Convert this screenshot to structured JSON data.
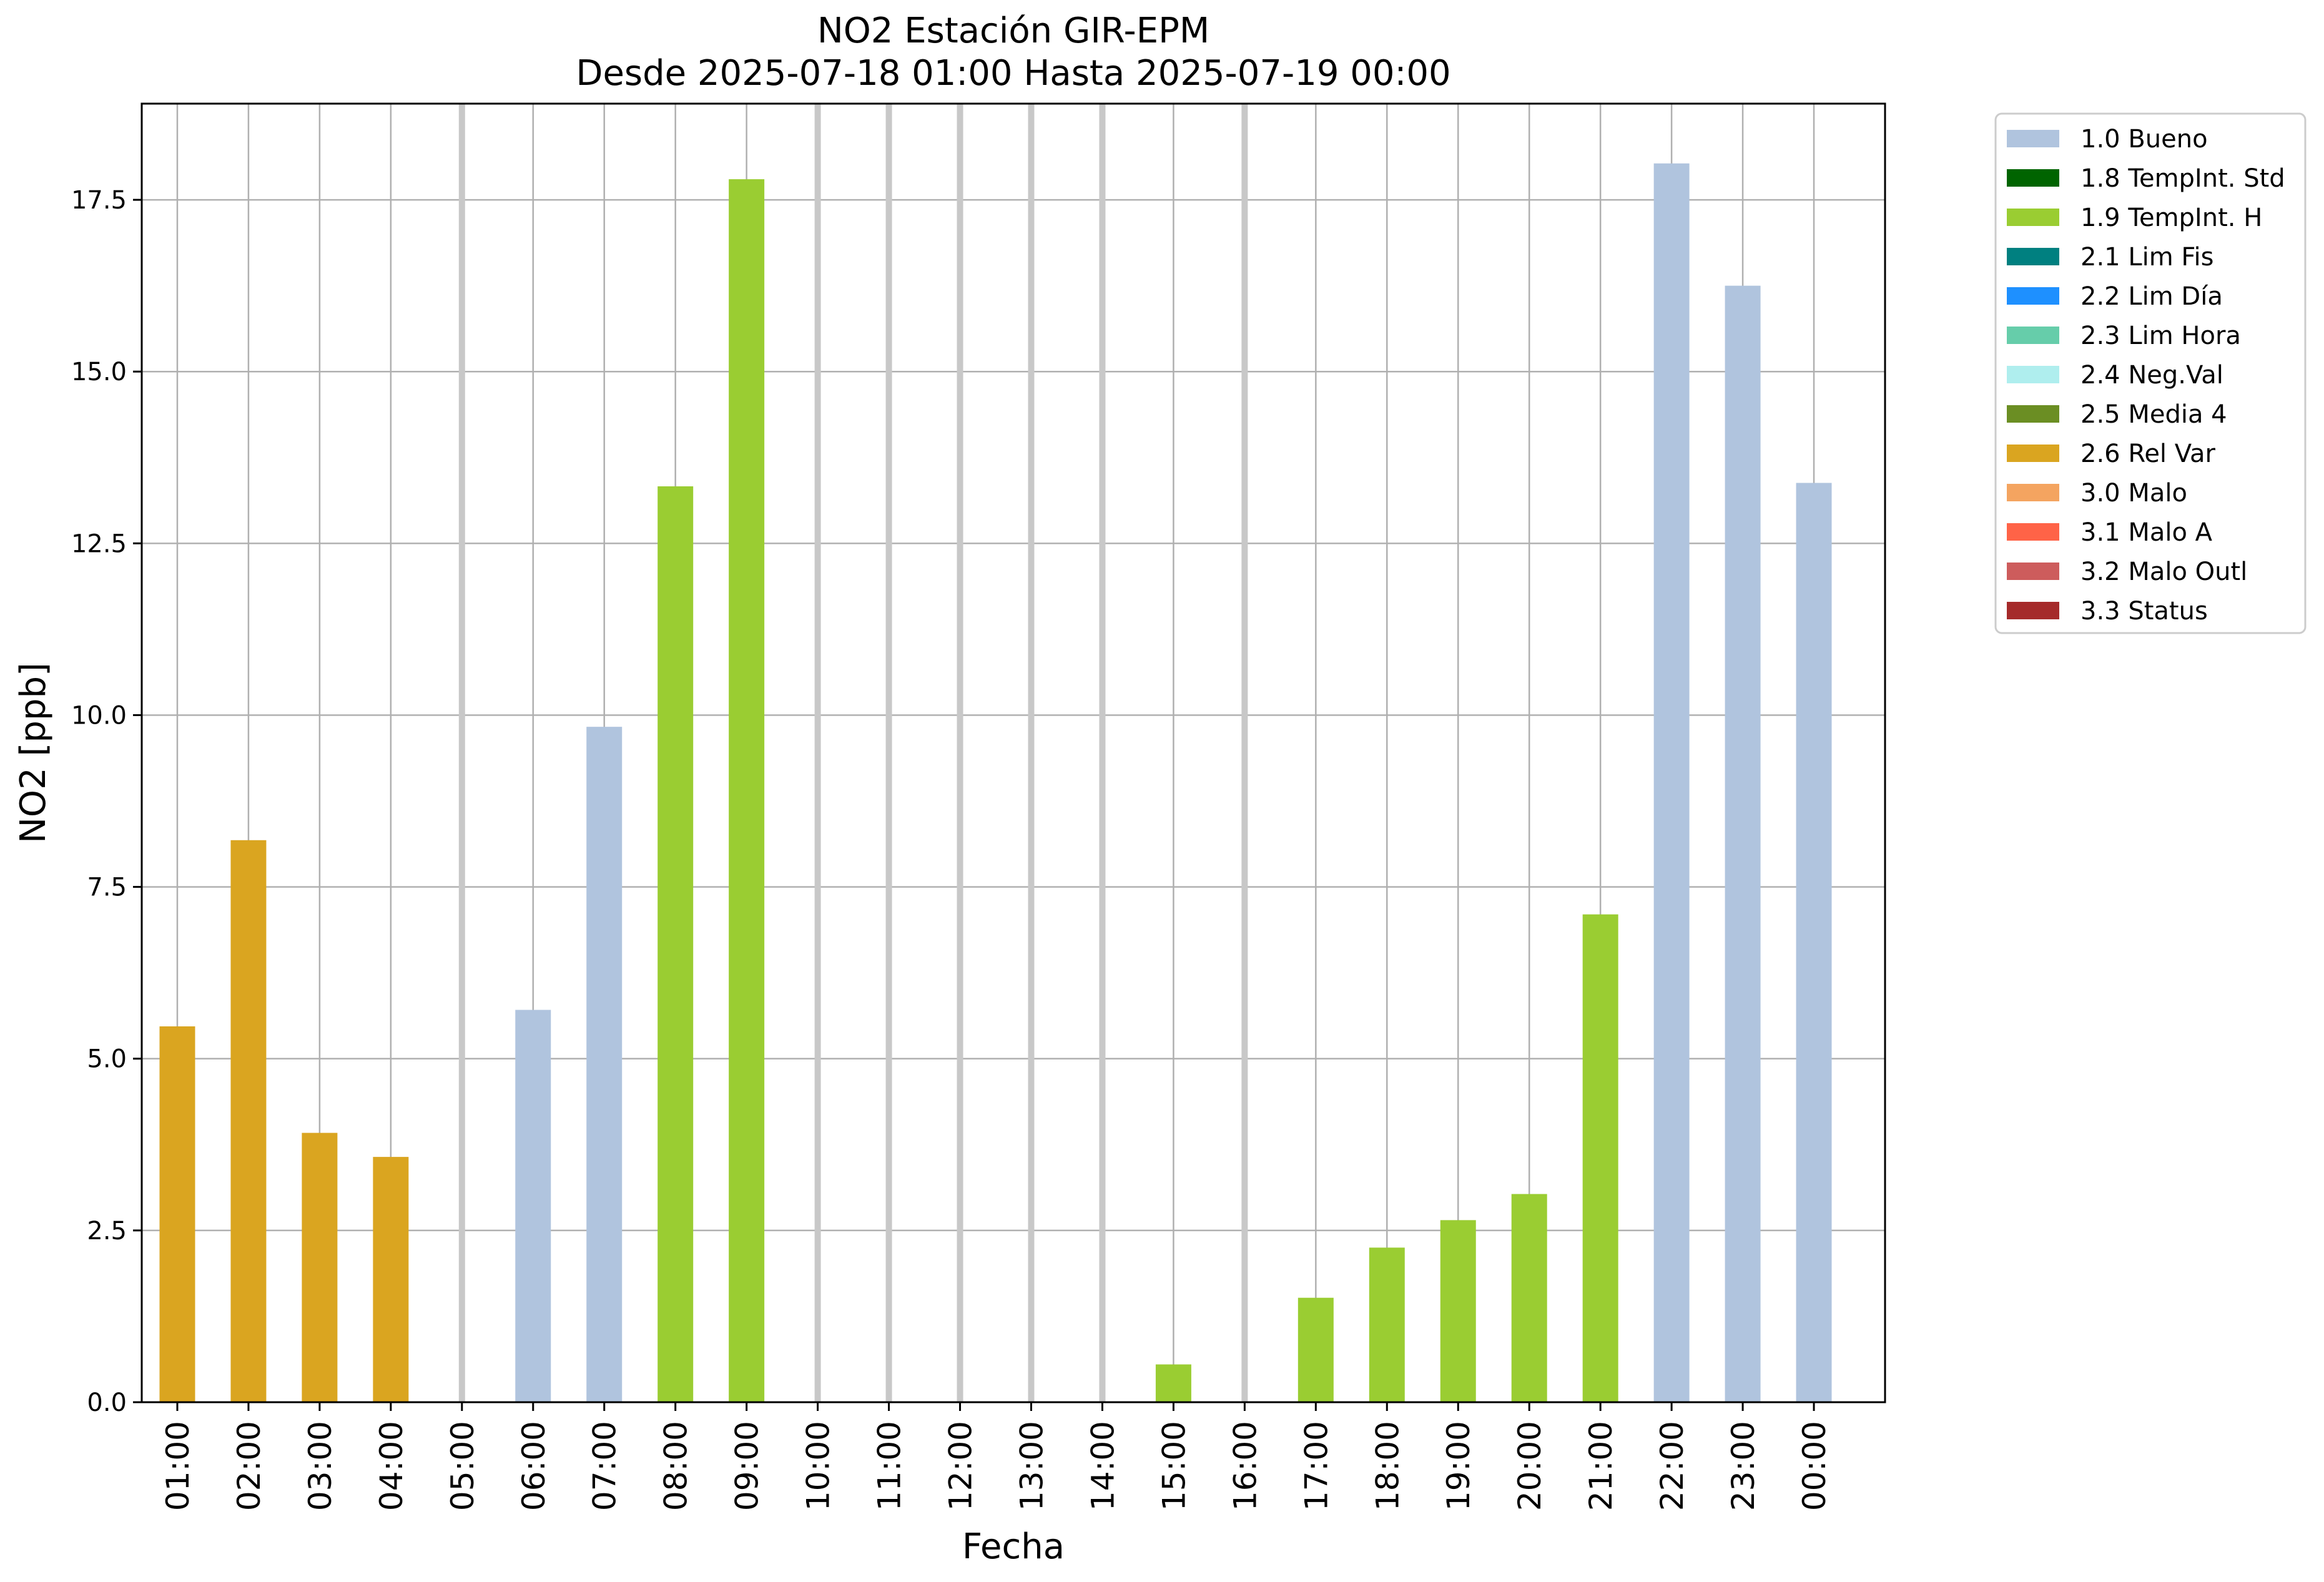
{
  "chart_data": {
    "type": "bar",
    "title": "NO2 Estación GIR-EPM",
    "subtitle": "Desde 2025-07-18 01:00 Hasta 2025-07-19 00:00",
    "xlabel": "Fecha",
    "ylabel": "NO2 [ppb]",
    "ylim": [
      0,
      18.9
    ],
    "yticks": [
      "0.0",
      "2.5",
      "5.0",
      "7.5",
      "10.0",
      "12.5",
      "15.0",
      "17.5"
    ],
    "grid": true,
    "legend_position": "outside-right",
    "categories": [
      "01:00",
      "02:00",
      "03:00",
      "04:00",
      "05:00",
      "06:00",
      "07:00",
      "08:00",
      "09:00",
      "10:00",
      "11:00",
      "12:00",
      "13:00",
      "14:00",
      "15:00",
      "16:00",
      "17:00",
      "18:00",
      "19:00",
      "20:00",
      "21:00",
      "22:00",
      "23:00",
      "00:00"
    ],
    "values": [
      5.47,
      8.18,
      3.92,
      3.57,
      null,
      5.71,
      9.83,
      13.33,
      17.8,
      null,
      null,
      null,
      null,
      null,
      0.55,
      null,
      1.52,
      2.25,
      2.65,
      3.03,
      7.1,
      18.03,
      16.25,
      13.38
    ],
    "flags": [
      "2.6 Rel Var",
      "2.6 Rel Var",
      "2.6 Rel Var",
      "2.6 Rel Var",
      null,
      "1.0 Bueno",
      "1.0 Bueno",
      "1.9 TempInt. H",
      "1.9 TempInt. H",
      null,
      null,
      null,
      null,
      null,
      "1.9 TempInt. H",
      null,
      "1.9 TempInt. H",
      "1.9 TempInt. H",
      "1.9 TempInt. H",
      "1.9 TempInt. H",
      "1.9 TempInt. H",
      "1.0 Bueno",
      "1.0 Bueno",
      "1.0 Bueno"
    ],
    "missing_marker_color": "#c8c8c8",
    "legend": [
      {
        "label": "1.0 Bueno",
        "color": "#b0c4de"
      },
      {
        "label": "1.8 TempInt. Std",
        "color": "#006400"
      },
      {
        "label": "1.9 TempInt. H",
        "color": "#9acd32"
      },
      {
        "label": "2.1 Lim Fis",
        "color": "#008080"
      },
      {
        "label": "2.2 Lim Día",
        "color": "#1e90ff"
      },
      {
        "label": "2.3 Lim Hora",
        "color": "#66cdaa"
      },
      {
        "label": "2.4 Neg.Val",
        "color": "#afeeee"
      },
      {
        "label": "2.5 Media 4",
        "color": "#6b8e23"
      },
      {
        "label": "2.6 Rel Var",
        "color": "#daa520"
      },
      {
        "label": "3.0 Malo",
        "color": "#f4a460"
      },
      {
        "label": "3.1 Malo A",
        "color": "#ff6347"
      },
      {
        "label": "3.2 Malo Outl",
        "color": "#cd5c5c"
      },
      {
        "label": "3.3 Status",
        "color": "#a52a2a"
      }
    ]
  }
}
